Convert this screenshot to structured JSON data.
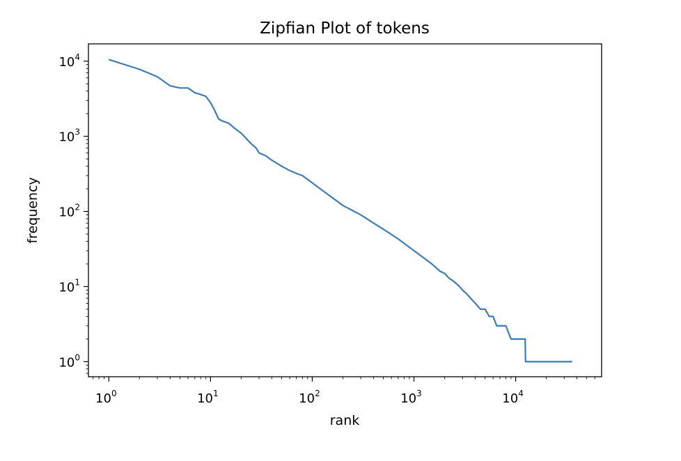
{
  "chart_data": {
    "type": "line",
    "title": "Zipfian Plot of tokens",
    "xlabel": "rank",
    "ylabel": "frequency",
    "xscale": "log",
    "yscale": "log",
    "xlim": [
      0.63,
      70000
    ],
    "ylim": [
      0.63,
      17000
    ],
    "grid": false,
    "color": "#3d7bb5",
    "xticks": [
      {
        "value": 1,
        "base": "10",
        "exp": "0"
      },
      {
        "value": 10,
        "base": "10",
        "exp": "1"
      },
      {
        "value": 100,
        "base": "10",
        "exp": "2"
      },
      {
        "value": 1000,
        "base": "10",
        "exp": "3"
      },
      {
        "value": 10000,
        "base": "10",
        "exp": "4"
      }
    ],
    "yticks": [
      {
        "value": 1,
        "base": "10",
        "exp": "0"
      },
      {
        "value": 10,
        "base": "10",
        "exp": "1"
      },
      {
        "value": 100,
        "base": "10",
        "exp": "2"
      },
      {
        "value": 1000,
        "base": "10",
        "exp": "3"
      },
      {
        "value": 10000,
        "base": "10",
        "exp": "4"
      }
    ],
    "series": [
      {
        "x": [
          1,
          2,
          3,
          4,
          5,
          6,
          7,
          8,
          9,
          10,
          11,
          12,
          13,
          15,
          17,
          20,
          23,
          25,
          28,
          30,
          35,
          40,
          50,
          60,
          70,
          80,
          100,
          120,
          150,
          200,
          300,
          400,
          500,
          700,
          1000,
          1200,
          1500,
          1800,
          2000,
          2200,
          2400,
          2600,
          2800,
          3000,
          3300,
          3600,
          4000,
          4500,
          5000,
          5500,
          6000,
          6500,
          7000,
          8000,
          9000,
          10000,
          12000,
          12400,
          12500,
          15000,
          20000,
          25000,
          30000,
          36000
        ],
        "y": [
          10500,
          7800,
          6200,
          4700,
          4400,
          4400,
          3800,
          3600,
          3400,
          2800,
          2200,
          1700,
          1600,
          1500,
          1300,
          1100,
          900,
          800,
          700,
          600,
          550,
          480,
          400,
          350,
          320,
          300,
          240,
          200,
          160,
          120,
          90,
          70,
          58,
          43,
          30,
          25,
          20,
          16,
          15,
          13,
          12,
          11,
          10,
          9,
          8,
          7,
          6,
          5,
          5,
          4,
          4,
          3,
          3,
          3,
          2,
          2,
          2,
          2,
          1,
          1,
          1,
          1,
          1,
          1
        ]
      }
    ]
  }
}
